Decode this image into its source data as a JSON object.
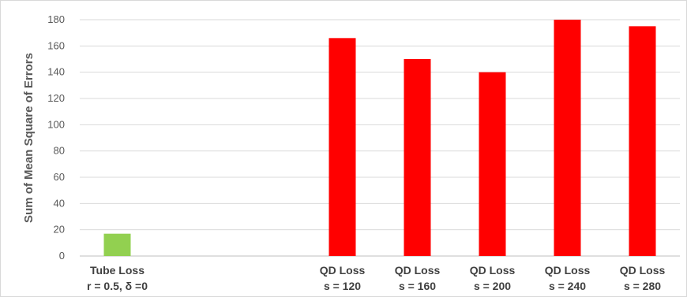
{
  "chart_data": {
    "type": "bar",
    "title": "",
    "xlabel": "",
    "ylabel": "Sum of Mean Square of Errors",
    "ylim": [
      0,
      180
    ],
    "yticks": [
      0,
      20,
      40,
      60,
      80,
      100,
      120,
      140,
      160,
      180
    ],
    "grid": true,
    "legend": "none",
    "categories": [
      [
        "Tube Loss",
        "r = 0.5, δ =0"
      ],
      [
        "",
        ""
      ],
      [
        "",
        ""
      ],
      [
        "QD Loss",
        "s = 120"
      ],
      [
        "QD Loss",
        "s = 160"
      ],
      [
        "QD Loss",
        "s =  200"
      ],
      [
        "QD Loss",
        "s =  240"
      ],
      [
        "QD Loss",
        "s =  280"
      ]
    ],
    "values": [
      17,
      null,
      null,
      166,
      150,
      140,
      180,
      175
    ],
    "colors": [
      "#92d050",
      null,
      null,
      "#ff0000",
      "#ff0000",
      "#ff0000",
      "#ff0000",
      "#ff0000"
    ]
  }
}
